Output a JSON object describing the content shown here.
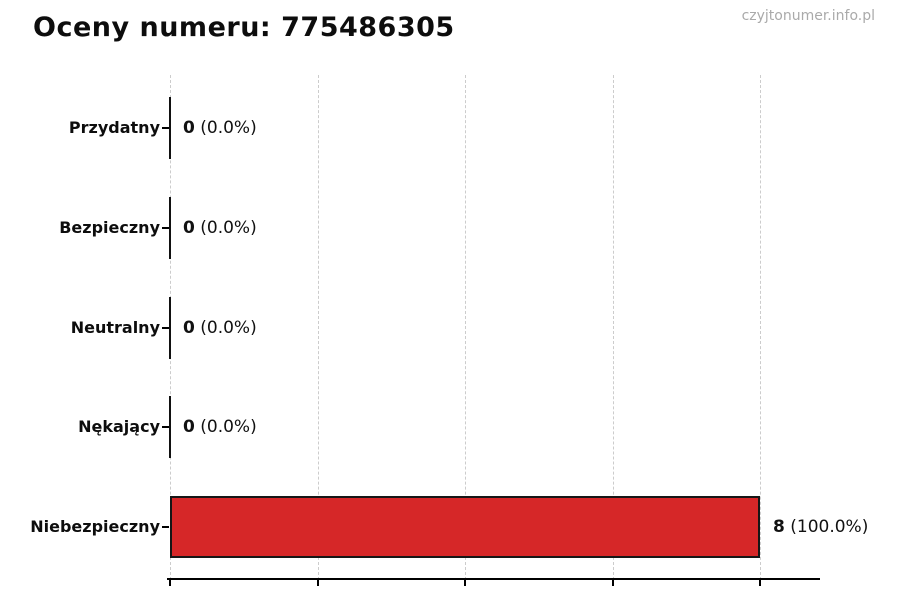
{
  "title": "Oceny numeru: 775486305",
  "watermark": "czyjtonumer.info.pl",
  "chart_data": {
    "type": "bar",
    "orientation": "horizontal",
    "title": "Oceny numeru: 775486305",
    "categories": [
      "Przydatny",
      "Bezpieczny",
      "Neutralny",
      "Nękający",
      "Niebezpieczny"
    ],
    "values": [
      0,
      0,
      0,
      0,
      8
    ],
    "value_labels": [
      {
        "count": "0",
        "percent": "(0.0%)"
      },
      {
        "count": "0",
        "percent": "(0.0%)"
      },
      {
        "count": "0",
        "percent": "(0.0%)"
      },
      {
        "count": "0",
        "percent": "(0.0%)"
      },
      {
        "count": "8",
        "percent": "(100.0%)"
      }
    ],
    "xlabel": "",
    "ylabel": "",
    "xlim": [
      0,
      8.8
    ],
    "x_ticks": [
      0,
      2,
      4,
      6,
      8
    ],
    "x_tick_labels_visible": false,
    "grid": true,
    "grid_style": "dashed-vertical",
    "legend": "none",
    "bar_color": "#d62728",
    "bar_edge_color": "#161616",
    "grid_color": "#cccccc",
    "axis_color": "#000000",
    "watermark_color": "#aaaaaa"
  }
}
